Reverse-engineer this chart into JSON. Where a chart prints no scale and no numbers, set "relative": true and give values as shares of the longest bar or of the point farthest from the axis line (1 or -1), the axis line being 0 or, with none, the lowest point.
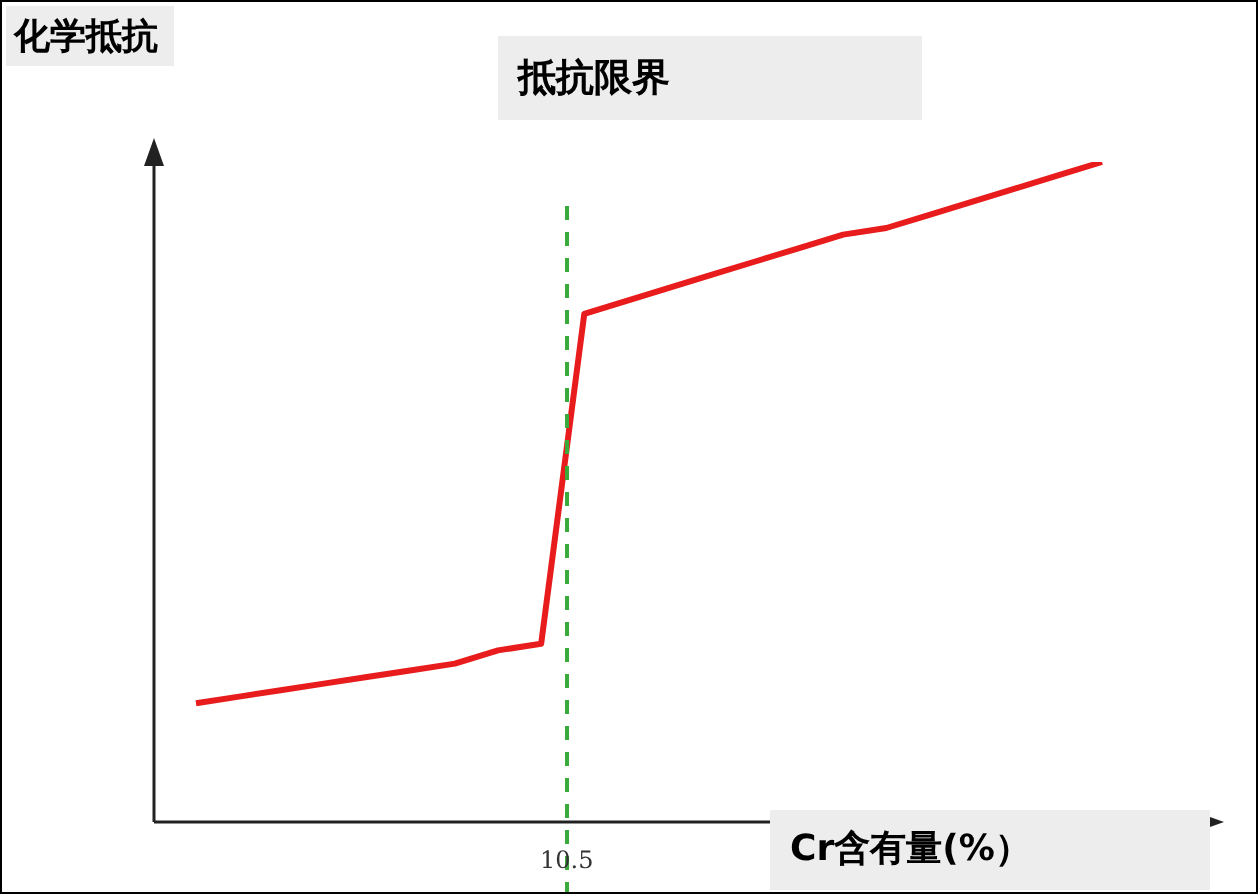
{
  "chart_data": {
    "type": "line",
    "relative": true,
    "ylabel": "化学抵抗",
    "xlabel": "Cr含有量(%）",
    "categories": [
      null,
      null,
      null,
      null,
      null,
      null,
      null,
      null,
      null,
      null,
      null,
      null,
      null,
      null,
      null,
      null,
      null,
      null,
      null,
      null,
      null,
      null
    ],
    "series": [
      {
        "color": "#e81c1c",
        "values": [
          0.18,
          0.19,
          0.2,
          0.21,
          0.22,
          0.23,
          0.24,
          0.26,
          0.27,
          0.77,
          0.79,
          0.81,
          0.83,
          0.85,
          0.87,
          0.89,
          0.9,
          0.92,
          0.94,
          0.96,
          0.98,
          1
        ]
      }
    ],
    "legend": false,
    "marker": "none",
    "line_style": "solid",
    "annotations": [
      "抵抗限界",
      "10.5"
    ]
  }
}
